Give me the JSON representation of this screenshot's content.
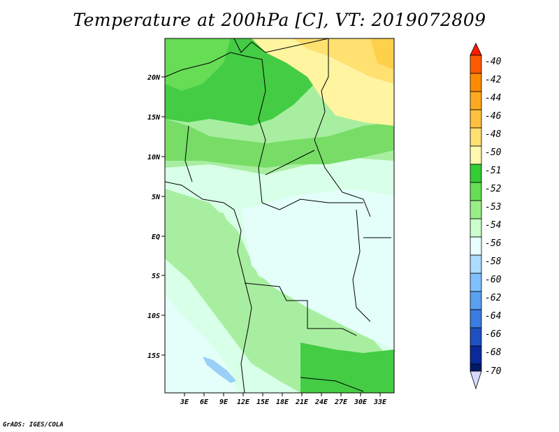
{
  "title": "Temperature at 200hPa [C], VT: 2019072809",
  "credit": "GrADS: IGES/COLA",
  "map": {
    "lat_labels": [
      "20N",
      "15N",
      "10N",
      "5N",
      "EQ",
      "5S",
      "10S",
      "15S"
    ],
    "lon_labels": [
      "3E",
      "6E",
      "9E",
      "12E",
      "15E",
      "18E",
      "21E",
      "24E",
      "27E",
      "30E",
      "33E"
    ]
  },
  "colorbar": {
    "labels": [
      "-40",
      "-42",
      "-44",
      "-46",
      "-48",
      "-50",
      "-51",
      "-52",
      "-53",
      "-54",
      "-56",
      "-58",
      "-60",
      "-62",
      "-64",
      "-66",
      "-68",
      "-70"
    ],
    "colors": [
      "#ff1a00",
      "#ff5a00",
      "#ff8c00",
      "#ffaa20",
      "#ffc040",
      "#ffe070",
      "#fff8b0",
      "#33cc33",
      "#66dd55",
      "#99ee88",
      "#ccffcc",
      "#e8ffff",
      "#aaddff",
      "#80c0ff",
      "#5aa0f0",
      "#3a7ce0",
      "#1e50c0",
      "#0a2a99",
      "#001a66",
      "#d8d8ff"
    ]
  },
  "legend_semantics": {
    "variable": "Temperature",
    "level": "200hPa",
    "units": "C"
  }
}
